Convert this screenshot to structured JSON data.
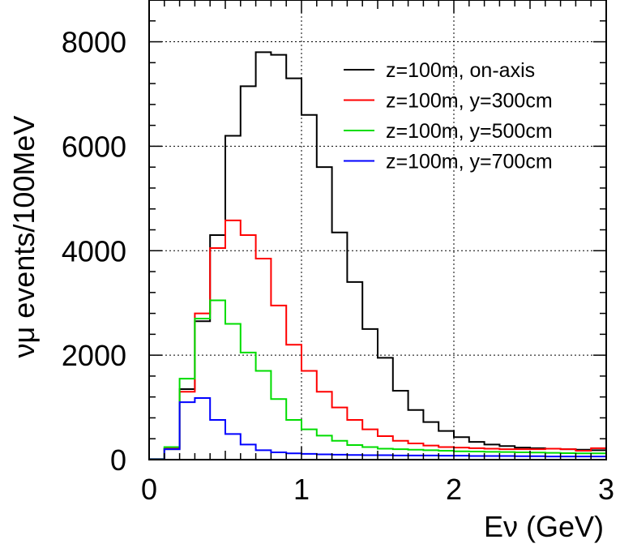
{
  "chart_data": {
    "type": "line",
    "style": "step-histogram",
    "xlabel": "Eν (GeV)",
    "ylabel": "νμ events/100MeV",
    "xlim": [
      0,
      3
    ],
    "ylim": [
      0,
      8800
    ],
    "xticks": [
      0,
      1,
      2,
      3
    ],
    "yticks": [
      0,
      2000,
      4000,
      6000,
      8000
    ],
    "grid": true,
    "legend_position": "top-right",
    "bin_edges": [
      0.0,
      0.1,
      0.2,
      0.3,
      0.4,
      0.5,
      0.6,
      0.7,
      0.8,
      0.9,
      1.0,
      1.1,
      1.2,
      1.3,
      1.4,
      1.5,
      1.6,
      1.7,
      1.8,
      1.9,
      2.0,
      2.1,
      2.2,
      2.3,
      2.4,
      2.5,
      2.6,
      2.7,
      2.8,
      2.9,
      3.0
    ],
    "series": [
      {
        "name": "z=100m, on-axis",
        "color": "#000000",
        "values": [
          10,
          200,
          1350,
          2650,
          4300,
          6200,
          7150,
          7800,
          7750,
          7300,
          6600,
          5600,
          4350,
          3400,
          2500,
          1950,
          1320,
          950,
          720,
          550,
          430,
          340,
          290,
          260,
          230,
          220,
          210,
          200,
          190,
          180
        ]
      },
      {
        "name": "z=100m, y=300cm",
        "color": "#ff0000",
        "values": [
          10,
          220,
          1300,
          2800,
          4050,
          4580,
          4300,
          3850,
          2950,
          2200,
          1700,
          1300,
          1000,
          760,
          580,
          450,
          360,
          310,
          270,
          240,
          230,
          220,
          210,
          200,
          200,
          200,
          210,
          200,
          170,
          220
        ]
      },
      {
        "name": "z=100m, y=500cm",
        "color": "#00dd00",
        "values": [
          10,
          240,
          1550,
          2700,
          3050,
          2600,
          2050,
          1700,
          1160,
          760,
          580,
          460,
          360,
          280,
          240,
          210,
          200,
          190,
          180,
          170,
          160,
          155,
          150,
          145,
          140,
          135,
          130,
          125,
          120,
          120
        ]
      },
      {
        "name": "z=100m, y=700cm",
        "color": "#0000ff",
        "values": [
          5,
          200,
          1100,
          1180,
          760,
          490,
          290,
          180,
          140,
          120,
          110,
          100,
          95,
          90,
          85,
          85,
          80,
          80,
          80,
          75,
          75,
          70,
          70,
          70,
          65,
          65,
          60,
          60,
          60,
          60
        ]
      }
    ]
  }
}
